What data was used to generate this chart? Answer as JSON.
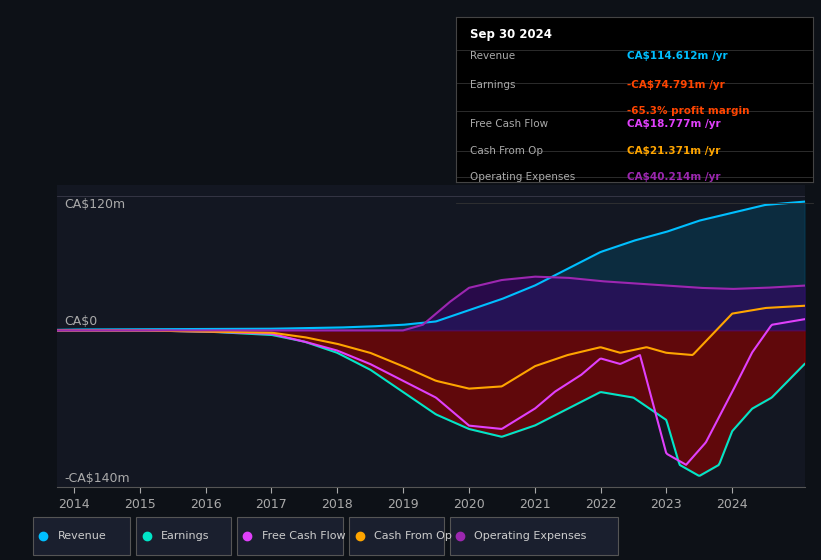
{
  "bg_color": "#0d1117",
  "plot_bg_color": "#131722",
  "ylim": [
    -140,
    130
  ],
  "ylabel_top": "CA$120m",
  "ylabel_zero": "CA$0",
  "ylabel_bottom": "-CA$140m",
  "x_ticks": [
    2014,
    2015,
    2016,
    2017,
    2018,
    2019,
    2020,
    2021,
    2022,
    2023,
    2024
  ],
  "revenue_color": "#00bfff",
  "earnings_color": "#00e5c8",
  "fcf_color": "#e040fb",
  "cashop_color": "#ffa500",
  "opex_color": "#9c27b0",
  "legend_items": [
    "Revenue",
    "Earnings",
    "Free Cash Flow",
    "Cash From Op",
    "Operating Expenses"
  ],
  "legend_colors": [
    "#00bfff",
    "#00e5c8",
    "#e040fb",
    "#ffa500",
    "#9c27b0"
  ],
  "info_box": {
    "date": "Sep 30 2024",
    "revenue_val": "CA$114.612m",
    "revenue_color": "#00bfff",
    "earnings_val": "-CA$74.791m",
    "earnings_color": "#ff4500",
    "margin_val": "-65.3%",
    "margin_color": "#ff4500",
    "fcf_val": "CA$18.777m",
    "fcf_color": "#e040fb",
    "cashop_val": "CA$21.371m",
    "cashop_color": "#ffa500",
    "opex_val": "CA$40.214m",
    "opex_color": "#9c27b0"
  }
}
